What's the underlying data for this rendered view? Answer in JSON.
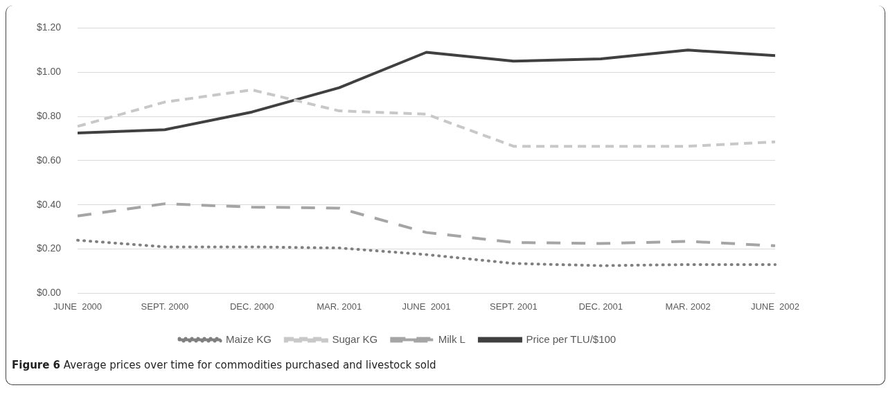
{
  "chart_data": {
    "type": "line",
    "categories": [
      "JUNE  2000",
      "SEPT. 2000",
      "DEC. 2000",
      "MAR. 2001",
      "JUNE  2001",
      "SEPT. 2001",
      "DEC. 2001",
      "MAR. 2002",
      "JUNE  2002"
    ],
    "series": [
      {
        "name": "Maize KG",
        "color": "#7f7f7f",
        "line_style": "dotted",
        "values": [
          0.24,
          0.21,
          0.21,
          0.205,
          0.175,
          0.135,
          0.125,
          0.13,
          0.13
        ]
      },
      {
        "name": "Sugar KG",
        "color": "#c8c8c8",
        "line_style": "dashed",
        "values": [
          0.755,
          0.865,
          0.92,
          0.825,
          0.81,
          0.665,
          0.665,
          0.665,
          0.685
        ]
      },
      {
        "name": "Milk L",
        "color": "#a5a5a5",
        "line_style": "dashed",
        "values": [
          0.35,
          0.405,
          0.39,
          0.385,
          0.275,
          0.23,
          0.225,
          0.235,
          0.215
        ]
      },
      {
        "name": "Price per TLU/$100",
        "color": "#404040",
        "line_style": "solid",
        "values": [
          0.725,
          0.74,
          0.82,
          0.93,
          1.09,
          1.05,
          1.06,
          1.1,
          1.075
        ]
      }
    ],
    "ylim": [
      0,
      1.2
    ],
    "yticks": [
      {
        "value": 0,
        "label": "$0.00"
      },
      {
        "value": 0.2,
        "label": "$0.20"
      },
      {
        "value": 0.4,
        "label": "$0.40"
      },
      {
        "value": 0.6,
        "label": "$0.60"
      },
      {
        "value": 0.8,
        "label": "$0.80"
      },
      {
        "value": 1,
        "label": "$1.00"
      },
      {
        "value": 1.2,
        "label": "$1.20"
      }
    ],
    "grid": "y",
    "legend": "bottom",
    "marker": "none",
    "annotations": [
      "Figure 6 Average prices over time for commodities purchased and livestock sold"
    ]
  }
}
